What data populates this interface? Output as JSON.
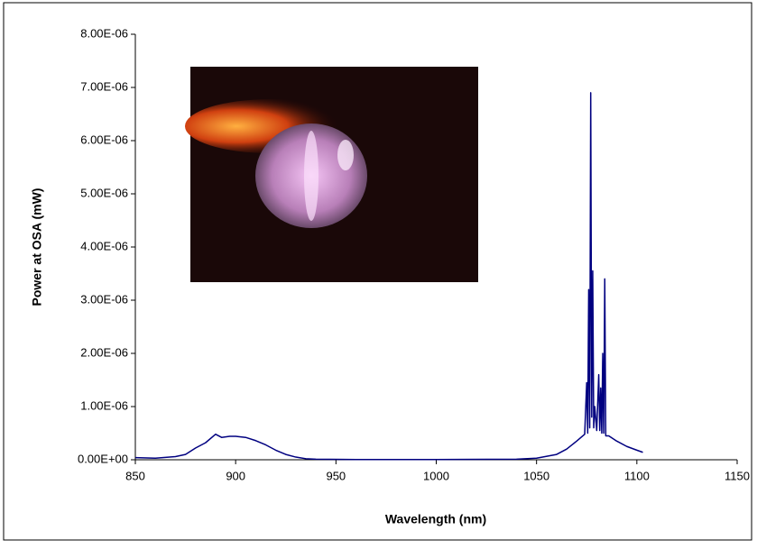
{
  "chart_data": {
    "type": "line",
    "x_label": "Wavelength (nm)",
    "y_label": "Power at OSA (mW)",
    "x": [
      850,
      860,
      870,
      875,
      880,
      885,
      890,
      893,
      897,
      900,
      905,
      910,
      915,
      920,
      925,
      930,
      935,
      940,
      960,
      1000,
      1040,
      1050,
      1060,
      1065,
      1070,
      1074,
      1075,
      1075.5,
      1076,
      1076.5,
      1077,
      1077.5,
      1078,
      1078.5,
      1079,
      1080,
      1081,
      1081.5,
      1082,
      1082.5,
      1083,
      1083.5,
      1084,
      1084.5,
      1086,
      1090,
      1095,
      1100,
      1103
    ],
    "series": [
      {
        "color": "#000080",
        "values": [
          4e-08,
          3e-08,
          6e-08,
          1e-07,
          2.2e-07,
          3.2e-07,
          4.8e-07,
          4.2e-07,
          4.4e-07,
          4.4e-07,
          4.2e-07,
          3.6e-07,
          2.8e-07,
          1.8e-07,
          1e-07,
          5e-08,
          2e-08,
          1e-08,
          5e-09,
          5e-09,
          1e-08,
          3e-08,
          1e-07,
          2e-07,
          3.5e-07,
          4.8e-07,
          1.45e-06,
          5e-07,
          3.2e-06,
          6e-07,
          6.9e-06,
          8e-07,
          3.55e-06,
          6e-07,
          1e-06,
          5.5e-07,
          1.6e-06,
          5.5e-07,
          1.35e-06,
          5e-07,
          2e-06,
          5e-07,
          3.4e-06,
          4.5e-07,
          4.5e-07,
          3.5e-07,
          2.5e-07,
          1.8e-07,
          1.4e-07
        ]
      }
    ],
    "xlim": [
      850,
      1150
    ],
    "xticks": [
      850,
      900,
      950,
      1000,
      1050,
      1100,
      1150
    ],
    "ylim": [
      0,
      8e-06
    ],
    "yticks": [
      {
        "value": 0,
        "label": "0.00E+00"
      },
      {
        "value": 1e-06,
        "label": "1.00E-06"
      },
      {
        "value": 2e-06,
        "label": "2.00E-06"
      },
      {
        "value": 3e-06,
        "label": "3.00E-06"
      },
      {
        "value": 4e-06,
        "label": "4.00E-06"
      },
      {
        "value": 5e-06,
        "label": "5.00E-06"
      },
      {
        "value": 6e-06,
        "label": "6.00E-06"
      },
      {
        "value": 7e-06,
        "label": "7.00E-06"
      },
      {
        "value": 8e-06,
        "label": "8.00E-06"
      }
    ],
    "grid": false
  }
}
